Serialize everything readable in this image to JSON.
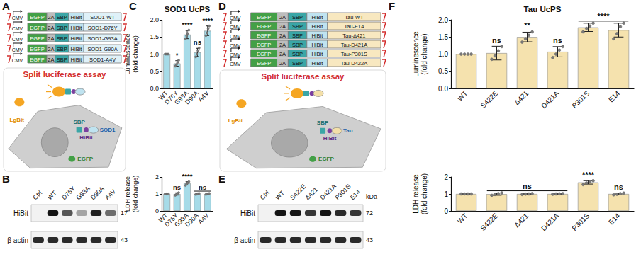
{
  "chart_data": [
    {
      "type": "bar",
      "title": "SOD1 UcPS",
      "ylabel": "Luminescence (fold change)",
      "categories": [
        "WT",
        "D76Y",
        "G93A",
        "D90A",
        "A4V"
      ],
      "values": [
        1.0,
        0.73,
        1.57,
        1.05,
        1.68
      ],
      "errors": [
        0,
        0.08,
        0.12,
        0.12,
        0.14
      ],
      "points": [
        [
          1,
          1,
          1,
          1
        ],
        [
          0.65,
          0.7,
          0.76,
          0.82
        ],
        [
          1.45,
          1.53,
          1.6,
          1.7
        ],
        [
          0.92,
          1.0,
          1.1,
          1.18
        ],
        [
          1.54,
          1.62,
          1.74,
          1.82
        ]
      ],
      "color": "#a6dbe8",
      "ylim": [
        0,
        2
      ],
      "yticks": [
        {
          "value": 0,
          "label": "0.0"
        },
        {
          "value": 0.5,
          "label": "0.5"
        },
        {
          "value": 1,
          "label": "1.0"
        },
        {
          "value": 1.5,
          "label": "1.5"
        },
        {
          "value": 2,
          "label": "2.0"
        }
      ],
      "grid": false,
      "annotations": [
        {
          "text": "*",
          "categories": [
            "D76Y"
          ]
        },
        {
          "text": "****",
          "categories": [
            "G93A"
          ]
        },
        {
          "text": "ns",
          "categories": [
            "D90A"
          ]
        },
        {
          "text": "****",
          "categories": [
            "A4V"
          ]
        }
      ]
    },
    {
      "type": "bar",
      "ylabel": "LDH release (fold change)",
      "categories": [
        "WT",
        "D76Y",
        "G93A",
        "D90A",
        "A4V"
      ],
      "values": [
        1.0,
        1.0,
        1.62,
        1.0,
        1.0
      ],
      "errors": [
        0,
        0.07,
        0.1,
        0.04,
        0.04
      ],
      "points": [
        [
          1,
          1,
          1,
          1
        ],
        [
          0.92,
          0.98,
          1.02,
          1.08
        ],
        [
          1.5,
          1.58,
          1.65,
          1.72
        ],
        [
          0.97,
          0.99,
          1.01,
          1.03
        ],
        [
          0.97,
          1.0,
          1.01,
          1.03
        ]
      ],
      "color": "#a6dbe8",
      "ylim": [
        0,
        2
      ],
      "yticks": [
        0,
        1,
        2
      ],
      "grid": false,
      "annotations": [
        {
          "text": "ns",
          "categories": [
            "D76Y"
          ]
        },
        {
          "text": "****",
          "categories": [
            "G93A"
          ]
        },
        {
          "text": "ns",
          "categories": [
            "D90A",
            "A4V"
          ]
        }
      ]
    },
    {
      "type": "bar",
      "title": "Tau UcPS",
      "ylabel": "Luminescence (fold change)",
      "categories": [
        "WT",
        "S422E",
        "Δ421",
        "D421A",
        "P301S",
        "E14"
      ],
      "values": [
        1.0,
        1.03,
        1.5,
        1.07,
        1.78,
        1.7
      ],
      "errors": [
        0,
        0.2,
        0.14,
        0.15,
        0.12,
        0.2
      ],
      "points": [
        [
          1,
          1,
          1,
          1
        ],
        [
          0.85,
          0.95,
          1.1,
          1.22
        ],
        [
          1.35,
          1.45,
          1.55,
          1.65
        ],
        [
          0.9,
          1.0,
          1.12,
          1.22
        ],
        [
          1.65,
          1.75,
          1.82,
          1.9
        ],
        [
          1.45,
          1.6,
          1.8,
          1.9
        ]
      ],
      "color": "#f5e2ae",
      "ylim": [
        0,
        2
      ],
      "yticks": [
        {
          "value": 0,
          "label": "0.0"
        },
        {
          "value": 0.5,
          "label": "0.5"
        },
        {
          "value": 1,
          "label": "1.0"
        },
        {
          "value": 1.5,
          "label": "1.5"
        },
        {
          "value": 2,
          "label": "2.0"
        }
      ],
      "grid": false,
      "annotations": [
        {
          "text": "ns",
          "categories": [
            "S422E"
          ]
        },
        {
          "text": "**",
          "categories": [
            "Δ421"
          ]
        },
        {
          "text": "ns",
          "categories": [
            "D421A"
          ]
        },
        {
          "text": "****",
          "categories": [
            "P301S",
            "E14"
          ]
        }
      ]
    },
    {
      "type": "bar",
      "ylabel": "LDH release (fold change)",
      "categories": [
        "WT",
        "S422E",
        "Δ421",
        "D421A",
        "P301S",
        "E14"
      ],
      "values": [
        1.0,
        0.99,
        1.0,
        1.0,
        1.68,
        1.0
      ],
      "errors": [
        0,
        0.07,
        0.03,
        0.03,
        0.1,
        0.05
      ],
      "points": [
        [
          1,
          1,
          1,
          1
        ],
        [
          0.92,
          0.97,
          1.02,
          1.06
        ],
        [
          0.97,
          0.99,
          1.0,
          1.02
        ],
        [
          0.98,
          1.0,
          1.01,
          1.02
        ],
        [
          1.55,
          1.65,
          1.72,
          1.78
        ],
        [
          0.95,
          0.98,
          1.02,
          1.05
        ]
      ],
      "color": "#f5e2ae",
      "ylim": [
        0,
        2
      ],
      "yticks": [
        0,
        1,
        2
      ],
      "grid": false,
      "annotations": [
        {
          "text": "ns",
          "categories": [
            "S422E",
            "Δ421",
            "D421A"
          ]
        },
        {
          "text": "****",
          "categories": [
            "P301S"
          ]
        },
        {
          "text": "ns",
          "categories": [
            "E14"
          ]
        }
      ]
    }
  ],
  "panels": {
    "A": {
      "label": "A",
      "promoter": "CMV",
      "constructs": [
        [
          "EGFP",
          "2A",
          "SBP",
          "HiBit",
          "SOD1-WT"
        ],
        [
          "EGFP",
          "2A",
          "SBP",
          "HiBit",
          "SOD1-D76Y"
        ],
        [
          "EGFP",
          "2A",
          "SBP",
          "HiBit",
          "SOD1-G93A"
        ],
        [
          "EGFP",
          "2A",
          "SBP",
          "HiBit",
          "SOD1-G90A"
        ],
        [
          "EGFP",
          "2A",
          "SBP",
          "HiBit",
          "SOD1-A4V"
        ]
      ],
      "assay": {
        "title": "Split luciferase assay",
        "lgbit": "LgBit",
        "sbp": "SBP",
        "hibit": "HiBit",
        "protein": "SOD1",
        "egfp": "EGFP"
      }
    },
    "B": {
      "label": "B",
      "lanes": [
        "Ctrl",
        "WT",
        "D76Y",
        "G93A",
        "D90A",
        "A4V"
      ],
      "blots": [
        {
          "name": "HiBit",
          "marker": 17,
          "bands": [
            0,
            1,
            0.7,
            0.35,
            0.95,
            0.6
          ]
        },
        {
          "name": "β actin",
          "marker": 43,
          "bands": [
            0.9,
            0.9,
            0.9,
            0.9,
            0.9,
            0.9
          ]
        }
      ]
    },
    "C": {
      "label": "C"
    },
    "D": {
      "label": "D",
      "promoter": "CMV",
      "constructs": [
        [
          "EGFP",
          "2A",
          "SBP",
          "HiBit",
          "Tau-WT"
        ],
        [
          "EGFP",
          "2A",
          "SBP",
          "HiBit",
          "Tau-E14"
        ],
        [
          "EGFP",
          "2A",
          "SBP",
          "HiBit",
          "Tau-Δ421"
        ],
        [
          "EGFP",
          "2A",
          "SBP",
          "HiBit",
          "Tau-D421A"
        ],
        [
          "EGFP",
          "2A",
          "SBP",
          "HiBit",
          "Tau-P301S"
        ],
        [
          "EGFP",
          "2A",
          "SBP",
          "HiBit",
          "Tau-D422A"
        ]
      ],
      "assay": {
        "title": "Split luciferase assay",
        "lgbit": "LgBit",
        "sbp": "SBP",
        "hibit": "HiBit",
        "protein": "Tau",
        "egfp": "EGFP"
      }
    },
    "E": {
      "label": "E",
      "marker_unit": "kDa",
      "lanes": [
        "Ctrl",
        "WT",
        "S422E",
        "Δ421",
        "D421A",
        "P301S",
        "E14"
      ],
      "blots": [
        {
          "name": "HiBit",
          "marker": 72,
          "bands": [
            0,
            1,
            1,
            0.85,
            1,
            0.9,
            0.85
          ]
        },
        {
          "name": "β actin",
          "marker": 43,
          "bands": [
            0.9,
            0.9,
            0.9,
            0.9,
            0.9,
            0.9,
            0.9
          ]
        }
      ]
    },
    "F": {
      "label": "F"
    }
  }
}
